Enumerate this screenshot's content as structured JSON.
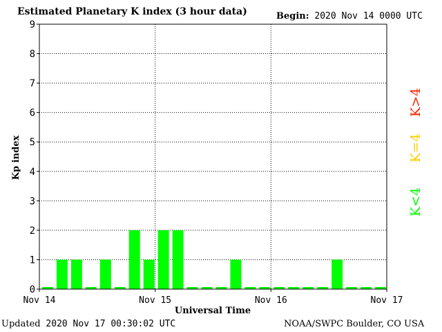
{
  "header": {
    "title": "Estimated Planetary K index (3 hour data)",
    "begin_label": "Begin:",
    "begin_value": "2020 Nov 14 0000 UTC"
  },
  "footer": {
    "updated_label": "Updated",
    "updated_value": "2020 Nov 17 00:30:02 UTC",
    "credit": "NOAA/SWPC Boulder, CO USA"
  },
  "colors": {
    "below": "#00ff00",
    "equal": "#ffcc00",
    "above": "#ff2200",
    "bar": "#00ff00"
  },
  "chart_data": {
    "type": "bar",
    "title": "Estimated Planetary K index (3 hour data)",
    "xlabel": "Universal Time",
    "ylabel": "Kp index",
    "ylim": [
      0,
      9
    ],
    "y_ticks": [
      "0",
      "1",
      "2",
      "3",
      "4",
      "5",
      "6",
      "7",
      "8",
      "9"
    ],
    "x_ticks": [
      "Nov 14",
      "Nov 15",
      "Nov 16",
      "Nov 17"
    ],
    "grid": true,
    "legend_position": "right",
    "legend": [
      {
        "label": "K>4",
        "color": "#ff2200"
      },
      {
        "label": "K=4",
        "color": "#ffcc00"
      },
      {
        "label": "K<4",
        "color": "#00ff00"
      }
    ],
    "values": [
      0,
      1,
      1,
      0,
      1,
      0,
      2,
      1,
      2,
      2,
      0,
      0,
      0,
      1,
      0,
      0,
      0,
      0,
      0,
      0,
      1,
      0,
      0,
      0
    ]
  }
}
